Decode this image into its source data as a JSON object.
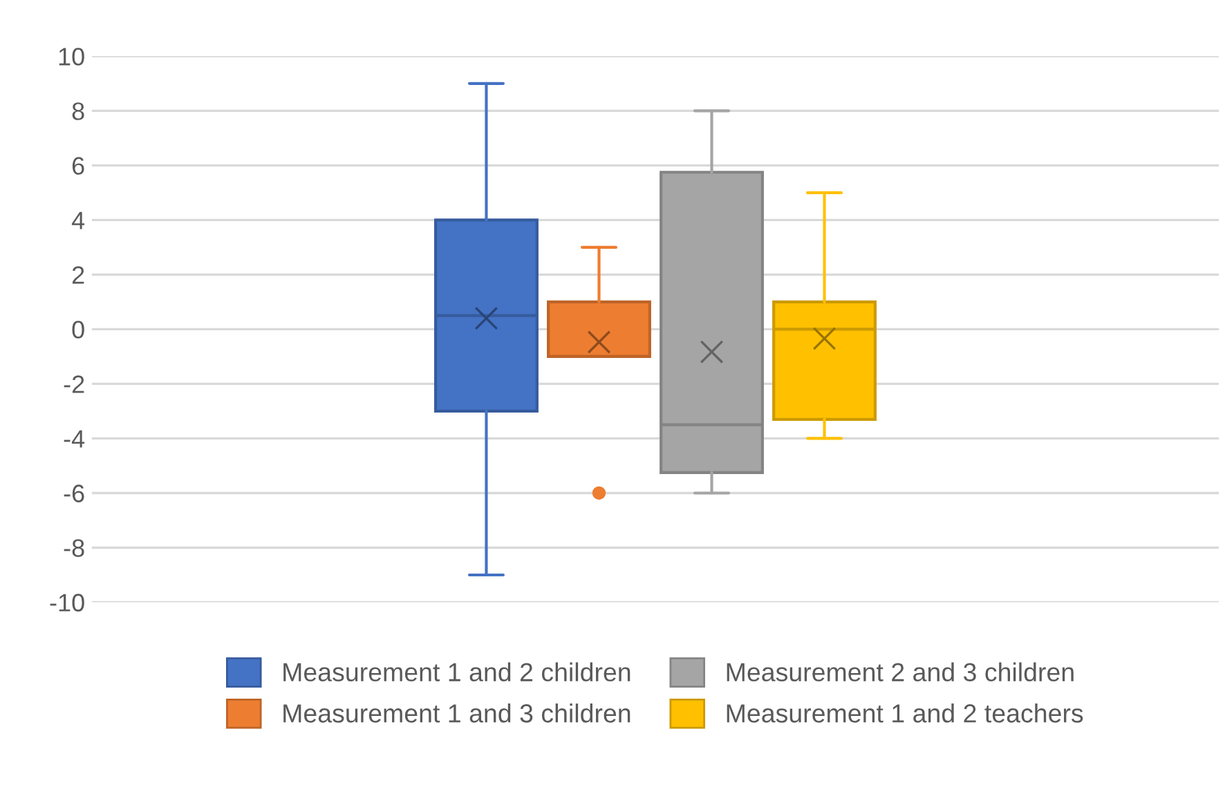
{
  "chart_data": {
    "type": "box",
    "categories": [
      null
    ],
    "series": [
      {
        "name": "Measurement 1 and 2 children",
        "color": "#4472c4",
        "boxes": [
          {
            "low": -9,
            "q1": -3,
            "median": 0.5,
            "q3": 4,
            "high": 9,
            "mean": 0.4
          }
        ]
      },
      {
        "name": "Measurement 1 and 3 children",
        "color": "#ed7d31",
        "boxes": [
          {
            "low": -1,
            "q1": -1,
            "median": -1,
            "q3": 1,
            "high": 3,
            "mean": -0.47,
            "outliers": [
              -6
            ]
          }
        ]
      },
      {
        "name": "Measurement 2 and 3 children",
        "color": "#a5a5a5",
        "boxes": [
          {
            "low": -6,
            "q1": -5.25,
            "median": -3.5,
            "q3": 5.75,
            "high": 8,
            "mean": -0.83
          }
        ]
      },
      {
        "name": "Measurement 1 and 2 teachers",
        "color": "#ffc000",
        "boxes": [
          {
            "low": -4,
            "q1": -3.3,
            "median": 0,
            "q3": 1,
            "high": 5,
            "mean": -0.34
          }
        ]
      }
    ],
    "ylim": [
      -10,
      10
    ],
    "yticks": [
      -10,
      -8,
      -6,
      -4,
      -2,
      0,
      2,
      4,
      6,
      8,
      10
    ],
    "grid": "y",
    "legend": "bottom"
  }
}
